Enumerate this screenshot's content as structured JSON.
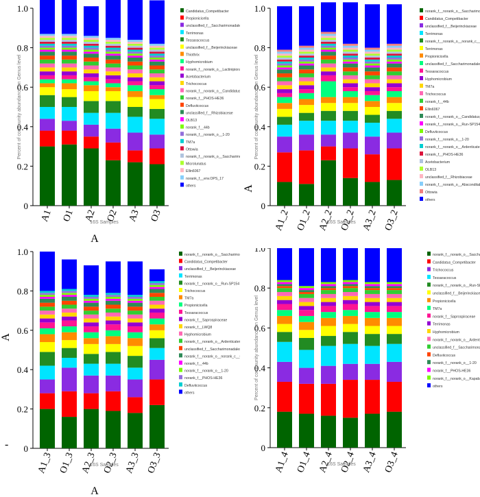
{
  "chart_data": [
    {
      "type": "bar",
      "stacked": true,
      "categories": [
        "A1",
        "O1",
        "A2",
        "O2",
        "A3",
        "O3"
      ],
      "xlabel": "A",
      "xlabel_small": "16S Samples",
      "ylabel": "Percent of community abundance on Genus level",
      "y_ticks": [
        "0",
        "0.2",
        "0.4",
        "0.6",
        "0.8",
        "1.0"
      ],
      "ylim": [
        0,
        1
      ],
      "legend": [
        "Candidatus_Competibacter",
        "Propionicicella",
        "unclassified_f__Saccharimonadales",
        "Terrimonas",
        "Tessaracoccus",
        "unclassified_f__Beijerinckiaceae",
        "Thiothrix",
        "Hyphomicrobium",
        "norank_f__norank_o__Lactinipiorales",
        "Acetobacterium",
        "Trichococcus",
        "norank_f__norank_o__Candidatus_Moranbacteria",
        "norank_f__PHOS-HE36",
        "Defluviicoccus",
        "unclassified_f__Rhizobiaceae",
        "OLB13",
        "norank_f__44b",
        "norank_f__norank_o__1-20",
        "TM7a",
        "Ottowia",
        "norank_f__norank_o__Saccharimonadales",
        "Microlunatus",
        "Ellin6067",
        "norank_f__env.OPS_17",
        "others"
      ],
      "series": [
        {
          "values": [
            0.3,
            0.31,
            0.29,
            0.23,
            0.22,
            0.21
          ]
        },
        {
          "values": [
            0.08,
            0.07,
            0.06,
            0.09,
            0.06,
            0.08
          ]
        },
        {
          "values": [
            0.06,
            0.05,
            0.06,
            0.07,
            0.09,
            0.07
          ]
        },
        {
          "values": [
            0.06,
            0.07,
            0.06,
            0.08,
            0.08,
            0.08
          ]
        },
        {
          "values": [
            0.06,
            0.05,
            0.06,
            0.06,
            0.05,
            0.05
          ]
        },
        {
          "values": [
            0.04,
            0.04,
            0.05,
            0.05,
            0.05,
            0.05
          ]
        },
        {
          "values": [
            0.02,
            0.03,
            0.03,
            0.02,
            0.03,
            0.02
          ]
        },
        {
          "values": [
            0.02,
            0.02,
            0.02,
            0.02,
            0.03,
            0.03
          ]
        },
        {
          "values": [
            0.02,
            0.02,
            0.02,
            0.02,
            0.02,
            0.02
          ]
        },
        {
          "values": [
            0.02,
            0.02,
            0.02,
            0.02,
            0.02,
            0.02
          ]
        },
        {
          "values": [
            0.02,
            0.02,
            0.02,
            0.02,
            0.02,
            0.02
          ]
        },
        {
          "values": [
            0.02,
            0.02,
            0.02,
            0.02,
            0.02,
            0.02
          ]
        },
        {
          "values": [
            0.02,
            0.02,
            0.02,
            0.02,
            0.02,
            0.02
          ]
        },
        {
          "values": [
            0.02,
            0.02,
            0.02,
            0.02,
            0.02,
            0.02
          ]
        },
        {
          "values": [
            0.02,
            0.02,
            0.02,
            0.02,
            0.02,
            0.02
          ]
        },
        {
          "values": [
            0.01,
            0.01,
            0.01,
            0.01,
            0.01,
            0.01
          ]
        },
        {
          "values": [
            0.01,
            0.01,
            0.01,
            0.01,
            0.01,
            0.01
          ]
        },
        {
          "values": [
            0.01,
            0.01,
            0.01,
            0.01,
            0.01,
            0.01
          ]
        },
        {
          "values": [
            0.01,
            0.01,
            0.01,
            0.01,
            0.01,
            0.01
          ]
        },
        {
          "values": [
            0.01,
            0.01,
            0.01,
            0.01,
            0.01,
            0.01
          ]
        },
        {
          "values": [
            0.01,
            0.01,
            0.01,
            0.01,
            0.01,
            0.01
          ]
        },
        {
          "values": [
            0.01,
            0.01,
            0.01,
            0.01,
            0.01,
            0.01
          ]
        },
        {
          "values": [
            0.01,
            0.01,
            0.01,
            0.01,
            0.01,
            0.01
          ]
        },
        {
          "values": [
            0.01,
            0.01,
            0.01,
            0.01,
            0.01,
            0.01
          ]
        },
        {
          "values": [
            0.18,
            0.18,
            0.15,
            0.2,
            0.22,
            0.22
          ]
        }
      ]
    },
    {
      "type": "bar",
      "stacked": true,
      "categories": [
        "A1_2",
        "O1_2",
        "A2_2",
        "O2_2",
        "A3_2",
        "O3_2"
      ],
      "xlabel": "",
      "xlabel_small": "16S Samples",
      "ylabel": "Percent of community abundance on Genus level",
      "side_label": "A",
      "y_ticks": [
        "0",
        "0.2",
        "0.4",
        "0.6",
        "0.8",
        "1.0"
      ],
      "ylim": [
        0,
        1
      ],
      "legend": [
        "norank_f__norank_o__Saccharimonadales",
        "Candidatus_Competibacter",
        "unclassified_f__Beijerinckiaceae",
        "Terrimonas",
        "norank_f__norank_o__norank_c__Gracilibacteria",
        "Terrimonas",
        "Propionicicella",
        "unclassified_f__Saccharimonadales",
        "Tessaracoccus",
        "Hyphomicrobium",
        "TM7a",
        "Trichococcus",
        "norank_f__44b",
        "Ellin6067",
        "norank_f__norank_o__Candidatus_Moranbacteria",
        "norank_f__norank_o__Run-SP154",
        "Defluviicoccus",
        "norank_f__norank_o__1-20",
        "norank_f__norank_o__Ardenticatenales",
        "norank_f__PHOS-HE36",
        "Acetobacterium",
        "OLB13",
        "unclassified_f__Rhizobiaceae",
        "norank_f__norank_o__Absconditabacteriales_SR1",
        "Ottowia",
        "others"
      ],
      "series": [
        {
          "values": [
            0.12,
            0.11,
            0.23,
            0.14,
            0.12,
            0.13
          ]
        },
        {
          "values": [
            0.15,
            0.17,
            0.07,
            0.15,
            0.14,
            0.16
          ]
        },
        {
          "values": [
            0.08,
            0.08,
            0.06,
            0.08,
            0.09,
            0.08
          ]
        },
        {
          "values": [
            0.06,
            0.07,
            0.07,
            0.06,
            0.07,
            0.07
          ]
        },
        {
          "values": [
            0.04,
            0.04,
            0.05,
            0.05,
            0.04,
            0.04
          ]
        },
        {
          "values": [
            0.04,
            0.04,
            0.04,
            0.04,
            0.04,
            0.04
          ]
        },
        {
          "values": [
            0.03,
            0.03,
            0.03,
            0.03,
            0.03,
            0.03
          ]
        },
        {
          "values": [
            0.03,
            0.03,
            0.08,
            0.03,
            0.03,
            0.03
          ]
        },
        {
          "values": [
            0.02,
            0.02,
            0.03,
            0.02,
            0.02,
            0.02
          ]
        },
        {
          "values": [
            0.02,
            0.02,
            0.02,
            0.02,
            0.02,
            0.02
          ]
        },
        {
          "values": [
            0.02,
            0.02,
            0.02,
            0.02,
            0.02,
            0.02
          ]
        },
        {
          "values": [
            0.02,
            0.02,
            0.02,
            0.02,
            0.02,
            0.02
          ]
        },
        {
          "values": [
            0.02,
            0.02,
            0.02,
            0.02,
            0.02,
            0.02
          ]
        },
        {
          "values": [
            0.02,
            0.02,
            0.02,
            0.02,
            0.02,
            0.02
          ]
        },
        {
          "values": [
            0.02,
            0.02,
            0.02,
            0.02,
            0.02,
            0.02
          ]
        },
        {
          "values": [
            0.01,
            0.01,
            0.01,
            0.01,
            0.01,
            0.01
          ]
        },
        {
          "values": [
            0.01,
            0.01,
            0.01,
            0.01,
            0.01,
            0.01
          ]
        },
        {
          "values": [
            0.01,
            0.01,
            0.01,
            0.01,
            0.01,
            0.01
          ]
        },
        {
          "values": [
            0.01,
            0.01,
            0.01,
            0.01,
            0.01,
            0.01
          ]
        },
        {
          "values": [
            0.01,
            0.01,
            0.01,
            0.01,
            0.01,
            0.01
          ]
        },
        {
          "values": [
            0.01,
            0.01,
            0.01,
            0.01,
            0.01,
            0.01
          ]
        },
        {
          "values": [
            0.01,
            0.01,
            0.01,
            0.01,
            0.01,
            0.01
          ]
        },
        {
          "values": [
            0.01,
            0.01,
            0.01,
            0.01,
            0.01,
            0.01
          ]
        },
        {
          "values": [
            0.01,
            0.01,
            0.01,
            0.01,
            0.01,
            0.01
          ]
        },
        {
          "values": [
            0.01,
            0.01,
            0.01,
            0.01,
            0.01,
            0.01
          ]
        },
        {
          "values": [
            0.22,
            0.2,
            0.15,
            0.21,
            0.22,
            0.2
          ]
        }
      ]
    },
    {
      "type": "bar",
      "stacked": true,
      "categories": [
        "A1_3",
        "O1_3",
        "A2_3",
        "O2_3",
        "A3_3",
        "O3_3"
      ],
      "xlabel": "A",
      "xlabel_small": "16S Samples",
      "ylabel": "",
      "side_label": "A",
      "y_ticks": [
        "0",
        "0.2",
        "0.4",
        "0.6",
        "0.8",
        "1.0"
      ],
      "ylim": [
        0,
        1
      ],
      "legend": [
        "norank_f__norank_o__Saccharimonadales",
        "Candidatus_Competibacter",
        "unclassified_f__Beijerinckiaceae",
        "Terrimonas",
        "norank_f__norank_o__Run-SP154",
        "Trichococcus",
        "TM7a",
        "Propionicicella",
        "Tessaracoccus",
        "norank_f__Saprospiraceae",
        "norank_f__LWQ8",
        "Hyphomicrobium",
        "norank_f__norank_o__Ardenticatenales",
        "unclassified_f__Saccharimonadales",
        "norank_f__norank_o__norank_c__Gracilibacteria",
        "norank_f__44b",
        "norank_f__norank_o__1-20",
        "norank_f__PHOS-HE36",
        "Defluviicoccus",
        "others"
      ],
      "series": [
        {
          "values": [
            0.2,
            0.16,
            0.2,
            0.19,
            0.18,
            0.22
          ]
        },
        {
          "values": [
            0.08,
            0.13,
            0.08,
            0.1,
            0.08,
            0.13
          ]
        },
        {
          "values": [
            0.07,
            0.12,
            0.09,
            0.08,
            0.09,
            0.1
          ]
        },
        {
          "values": [
            0.07,
            0.05,
            0.06,
            0.06,
            0.06,
            0.06
          ]
        },
        {
          "values": [
            0.07,
            0.05,
            0.05,
            0.06,
            0.06,
            0.05
          ]
        },
        {
          "values": [
            0.05,
            0.04,
            0.05,
            0.04,
            0.05,
            0.04
          ]
        },
        {
          "values": [
            0.04,
            0.04,
            0.03,
            0.04,
            0.04,
            0.03
          ]
        },
        {
          "values": [
            0.03,
            0.03,
            0.03,
            0.03,
            0.03,
            0.03
          ]
        },
        {
          "values": [
            0.03,
            0.03,
            0.03,
            0.03,
            0.03,
            0.03
          ]
        },
        {
          "values": [
            0.02,
            0.02,
            0.02,
            0.02,
            0.02,
            0.02
          ]
        },
        {
          "values": [
            0.02,
            0.02,
            0.02,
            0.02,
            0.02,
            0.02
          ]
        },
        {
          "values": [
            0.02,
            0.02,
            0.02,
            0.02,
            0.02,
            0.02
          ]
        },
        {
          "values": [
            0.02,
            0.02,
            0.02,
            0.02,
            0.02,
            0.02
          ]
        },
        {
          "values": [
            0.02,
            0.02,
            0.02,
            0.02,
            0.02,
            0.02
          ]
        },
        {
          "values": [
            0.02,
            0.02,
            0.02,
            0.02,
            0.02,
            0.02
          ]
        },
        {
          "values": [
            0.01,
            0.01,
            0.01,
            0.01,
            0.01,
            0.01
          ]
        },
        {
          "values": [
            0.01,
            0.01,
            0.01,
            0.01,
            0.01,
            0.01
          ]
        },
        {
          "values": [
            0.01,
            0.01,
            0.01,
            0.01,
            0.01,
            0.01
          ]
        },
        {
          "values": [
            0.01,
            0.01,
            0.01,
            0.01,
            0.01,
            0.01
          ]
        },
        {
          "values": [
            0.2,
            0.15,
            0.15,
            0.16,
            0.17,
            0.06
          ]
        }
      ]
    },
    {
      "type": "bar",
      "stacked": true,
      "categories": [
        "A1_4",
        "O1_4",
        "A2_4",
        "O2_4",
        "A3_4",
        "O3_4"
      ],
      "xlabel": "",
      "xlabel_small": "16S Samples",
      "ylabel": "Percent of community abundance on Genus level",
      "y_ticks": [
        "0",
        "0.2",
        "0.4",
        "0.6",
        "0.8",
        "1.0"
      ],
      "ylim": [
        0,
        1
      ],
      "legend": [
        "norank_f__norank_o__Saccharimonadales",
        "Candidatus_Competibacter",
        "Trichococcus",
        "Tessaracoccus",
        "norank_f__norank_o__Run-SP154",
        "unclassified_f__Beijerinckiaceae",
        "Propionicicella",
        "TM7a",
        "norank_f__Saprospiraceae",
        "Terrimonas",
        "Hyphomicrobium",
        "norank_f__norank_o__Ardenticatenales",
        "unclassified_f__Saccharimonadales",
        "Defluviicoccus",
        "norank_f__norank_o__1-20",
        "norank_f__PHOS-HE36",
        "norank_f__norank_o__Kapabacteriales",
        "others"
      ],
      "series": [
        {
          "values": [
            0.18,
            0.17,
            0.16,
            0.15,
            0.17,
            0.18
          ]
        },
        {
          "values": [
            0.15,
            0.15,
            0.16,
            0.19,
            0.17,
            0.15
          ]
        },
        {
          "values": [
            0.1,
            0.08,
            0.09,
            0.08,
            0.08,
            0.1
          ]
        },
        {
          "values": [
            0.1,
            0.09,
            0.1,
            0.1,
            0.09,
            0.09
          ]
        },
        {
          "values": [
            0.05,
            0.06,
            0.05,
            0.06,
            0.06,
            0.05
          ]
        },
        {
          "values": [
            0.04,
            0.04,
            0.05,
            0.04,
            0.04,
            0.04
          ]
        },
        {
          "values": [
            0.04,
            0.04,
            0.04,
            0.04,
            0.04,
            0.04
          ]
        },
        {
          "values": [
            0.03,
            0.03,
            0.03,
            0.03,
            0.03,
            0.03
          ]
        },
        {
          "values": [
            0.03,
            0.03,
            0.03,
            0.03,
            0.03,
            0.03
          ]
        },
        {
          "values": [
            0.02,
            0.02,
            0.02,
            0.02,
            0.02,
            0.02
          ]
        },
        {
          "values": [
            0.02,
            0.02,
            0.02,
            0.02,
            0.02,
            0.02
          ]
        },
        {
          "values": [
            0.02,
            0.02,
            0.02,
            0.02,
            0.02,
            0.02
          ]
        },
        {
          "values": [
            0.02,
            0.02,
            0.02,
            0.02,
            0.02,
            0.02
          ]
        },
        {
          "values": [
            0.01,
            0.01,
            0.01,
            0.01,
            0.01,
            0.01
          ]
        },
        {
          "values": [
            0.01,
            0.01,
            0.01,
            0.01,
            0.01,
            0.01
          ]
        },
        {
          "values": [
            0.01,
            0.01,
            0.01,
            0.01,
            0.01,
            0.01
          ]
        },
        {
          "values": [
            0.01,
            0.01,
            0.01,
            0.01,
            0.01,
            0.01
          ]
        },
        {
          "values": [
            0.16,
            0.19,
            0.17,
            0.16,
            0.17,
            0.17
          ]
        }
      ]
    }
  ],
  "figure": {
    "stray_mark": "-"
  },
  "colors": [
    "#006400",
    "#ff0000",
    "#8a2be2",
    "#00e5ff",
    "#228b22",
    "#ffff00",
    "#ff8c00",
    "#00ff7f",
    "#ff1493",
    "#9400d3",
    "#ffd700",
    "#ff69b4",
    "#32cd32",
    "#ff4500",
    "#2e8b57",
    "#ff00ff",
    "#7cfc00",
    "#9370db",
    "#00ced1",
    "#dc143c",
    "#b0c4de",
    "#adff2f",
    "#ffb6c1",
    "#87cefa",
    "#f08080",
    "#ba55d3",
    "#0000ff"
  ]
}
